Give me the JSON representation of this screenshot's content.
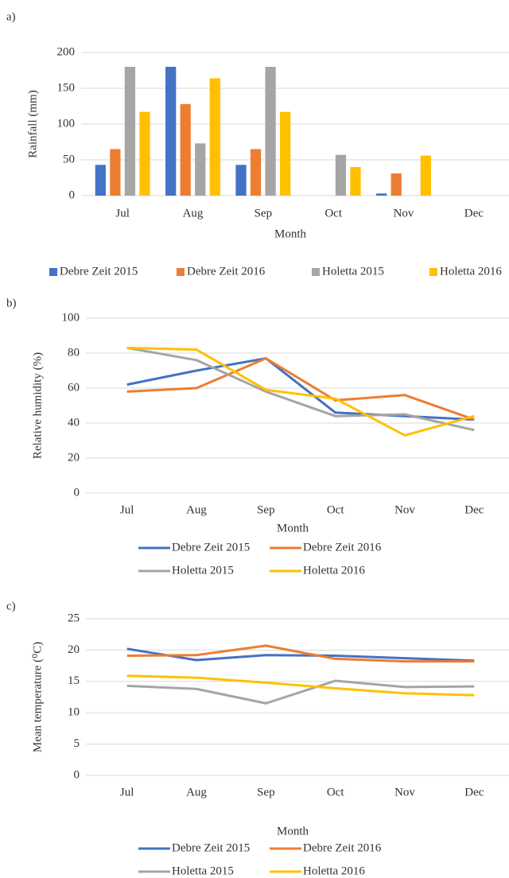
{
  "chart_data": [
    {
      "type": "bar",
      "label": "a)",
      "xlabel": "Month",
      "ylabel": "Rainfall (mm)",
      "categories": [
        "Jul",
        "Aug",
        "Sep",
        "Oct",
        "Nov",
        "Dec"
      ],
      "series": [
        {
          "name": "Debre Zeit 2015",
          "color": "#4472c4",
          "values": [
            43,
            180,
            43,
            0,
            3,
            0
          ]
        },
        {
          "name": "Debre Zeit 2016",
          "color": "#ed7d31",
          "values": [
            65,
            128,
            65,
            0,
            31,
            0
          ]
        },
        {
          "name": "Holetta 2015",
          "color": "#a5a5a5",
          "values": [
            180,
            73,
            180,
            57,
            0,
            0
          ]
        },
        {
          "name": "Holetta 2016",
          "color": "#ffc000",
          "values": [
            117,
            164,
            117,
            40,
            56,
            0
          ]
        }
      ],
      "ylim": [
        0,
        200
      ],
      "yticks": [
        0,
        50,
        100,
        150,
        200
      ],
      "grid": true
    },
    {
      "type": "line",
      "label": "b)",
      "xlabel": "Month",
      "ylabel": "Relative humidity (%)",
      "categories": [
        "Jul",
        "Aug",
        "Sep",
        "Oct",
        "Nov",
        "Dec"
      ],
      "series": [
        {
          "name": "Debre Zeit 2015",
          "color": "#4472c4",
          "values": [
            62,
            70,
            77,
            46,
            44,
            42
          ]
        },
        {
          "name": "Debre Zeit 2016",
          "color": "#ed7d31",
          "values": [
            58,
            60,
            77,
            53,
            56,
            42
          ]
        },
        {
          "name": "Holetta 2015",
          "color": "#a5a5a5",
          "values": [
            83,
            76,
            58,
            44,
            45,
            36
          ]
        },
        {
          "name": "Holetta 2016",
          "color": "#ffc000",
          "values": [
            83,
            82,
            59,
            54,
            33,
            44
          ]
        }
      ],
      "ylim": [
        0,
        100
      ],
      "yticks": [
        0,
        20,
        40,
        60,
        80,
        100
      ],
      "grid": true
    },
    {
      "type": "line",
      "label": "c)",
      "xlabel": "Month",
      "ylabel": "Mean temperature (⁰C)",
      "categories": [
        "Jul",
        "Aug",
        "Sep",
        "Oct",
        "Nov",
        "Dec"
      ],
      "series": [
        {
          "name": "Debre Zeit 2015",
          "color": "#4472c4",
          "values": [
            20.2,
            18.4,
            19.2,
            19.1,
            18.7,
            18.3
          ]
        },
        {
          "name": "Debre Zeit 2016",
          "color": "#ed7d31",
          "values": [
            19.1,
            19.2,
            20.7,
            18.6,
            18.2,
            18.2
          ]
        },
        {
          "name": "Holetta 2015",
          "color": "#a5a5a5",
          "values": [
            14.3,
            13.8,
            11.5,
            15.1,
            14.1,
            14.2
          ]
        },
        {
          "name": "Holetta 2016",
          "color": "#ffc000",
          "values": [
            15.9,
            15.6,
            14.8,
            13.9,
            13.1,
            12.8
          ]
        }
      ],
      "ylim": [
        0,
        25
      ],
      "yticks": [
        0,
        5,
        10,
        15,
        20,
        25
      ],
      "grid": true
    }
  ]
}
